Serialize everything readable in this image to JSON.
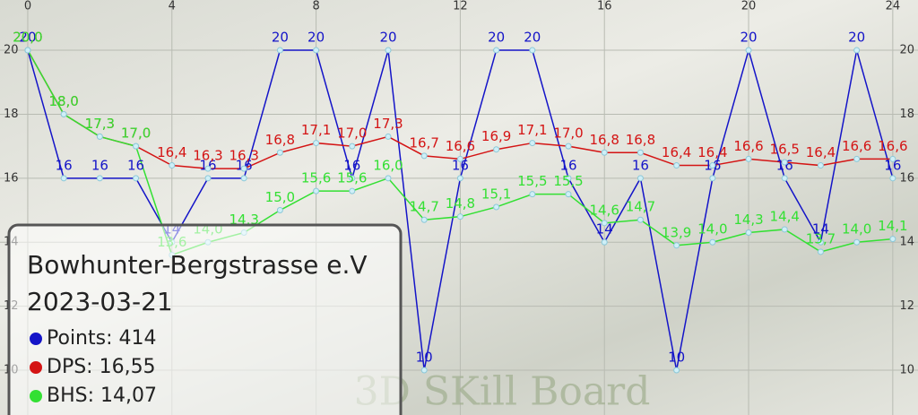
{
  "chart_data": {
    "type": "line",
    "x": [
      0,
      1,
      2,
      3,
      4,
      5,
      6,
      7,
      8,
      9,
      10,
      11,
      12,
      13,
      14,
      15,
      16,
      17,
      18,
      19,
      20,
      21,
      22,
      23,
      24
    ],
    "xlim": [
      -0.77,
      24.7
    ],
    "xticks": [
      0,
      4,
      8,
      12,
      16,
      20,
      24
    ],
    "ylim": [
      8.6,
      21.57
    ],
    "yticks": [
      10,
      12,
      14,
      16,
      18,
      20
    ],
    "grid": true,
    "series": [
      {
        "name": "Points: 414",
        "color": "#1414c8",
        "values": [
          20,
          16,
          16,
          16,
          14,
          16,
          16,
          20,
          20,
          16,
          20,
          10,
          16,
          20,
          20,
          16,
          14,
          16,
          10,
          16,
          20,
          16,
          14,
          20,
          16
        ]
      },
      {
        "name": "DPS: 16,55",
        "color": "#d41414",
        "values": [
          20.0,
          18.0,
          17.3,
          17.0,
          16.4,
          16.3,
          16.3,
          16.8,
          17.1,
          17.0,
          17.3,
          16.7,
          16.6,
          16.9,
          17.1,
          17.0,
          16.8,
          16.8,
          16.4,
          16.4,
          16.6,
          16.5,
          16.4,
          16.6,
          16.6
        ],
        "value_labels": [
          "20,0",
          "18,0",
          "17,3",
          "17,0",
          "16,4",
          "16,3",
          "16,3",
          "16,8",
          "17,1",
          "17,0",
          "17,3",
          "16,7",
          "16,6",
          "16,9",
          "17,1",
          "17,0",
          "16,8",
          "16,8",
          "16,4",
          "16,4",
          "16,6",
          "16,5",
          "16,4",
          "16,6",
          "16,6"
        ]
      },
      {
        "name": "BHS: 14,07",
        "color": "#33e033",
        "values": [
          20.0,
          18.0,
          17.3,
          17.0,
          13.6,
          14.0,
          14.3,
          15.0,
          15.6,
          15.6,
          16.0,
          14.7,
          14.8,
          15.1,
          15.5,
          15.5,
          14.6,
          14.7,
          13.9,
          14.0,
          14.3,
          14.4,
          13.7,
          14.0,
          14.1
        ],
        "value_labels": [
          "20,0",
          "18,0",
          "17,3",
          "17,0",
          "13,6",
          "14,0",
          "14,3",
          "15,0",
          "15,6",
          "15,6",
          "16,0",
          "14,7",
          "14,8",
          "15,1",
          "15,5",
          "15,5",
          "14,6",
          "14,7",
          "13,9",
          "14,0",
          "14,3",
          "14,4",
          "13,7",
          "14,0",
          "14,1"
        ]
      }
    ],
    "legend_title": "Bowhunter-Bergstrasse e.V",
    "legend_subtitle": "2023-03-21",
    "watermark": "3D SKill Board"
  }
}
